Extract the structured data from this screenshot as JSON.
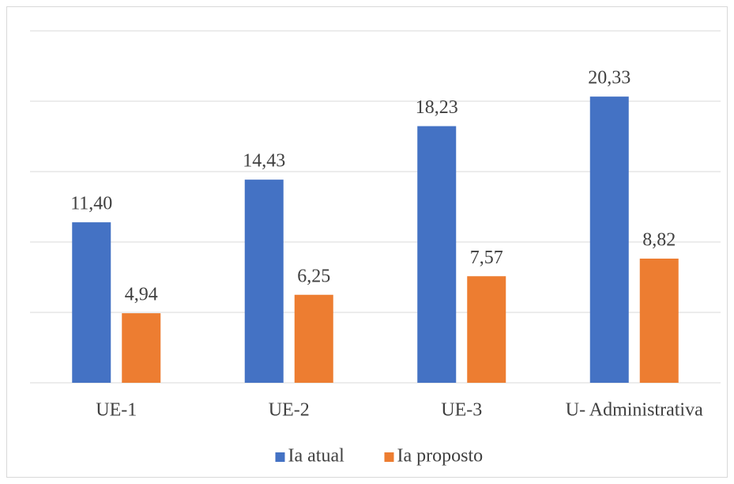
{
  "chart_data": {
    "type": "bar",
    "categories": [
      "UE-1",
      "UE-2",
      "UE-3",
      "U- Administrativa"
    ],
    "series": [
      {
        "name": "Ia atual",
        "color": "#4472c4",
        "values": [
          11.4,
          14.43,
          18.23,
          20.33
        ],
        "value_labels": [
          "11,40",
          "14,43",
          "18,23",
          "20,33"
        ]
      },
      {
        "name": "Ia proposto",
        "color": "#ed7d31",
        "values": [
          4.94,
          6.25,
          7.57,
          8.82
        ],
        "value_labels": [
          "4,94",
          "6,25",
          "7,57",
          "8,82"
        ]
      }
    ],
    "ylim": [
      0,
      25
    ],
    "yticks": [
      0,
      5,
      10,
      15,
      20,
      25
    ],
    "grid": true,
    "legend": "bottom"
  }
}
